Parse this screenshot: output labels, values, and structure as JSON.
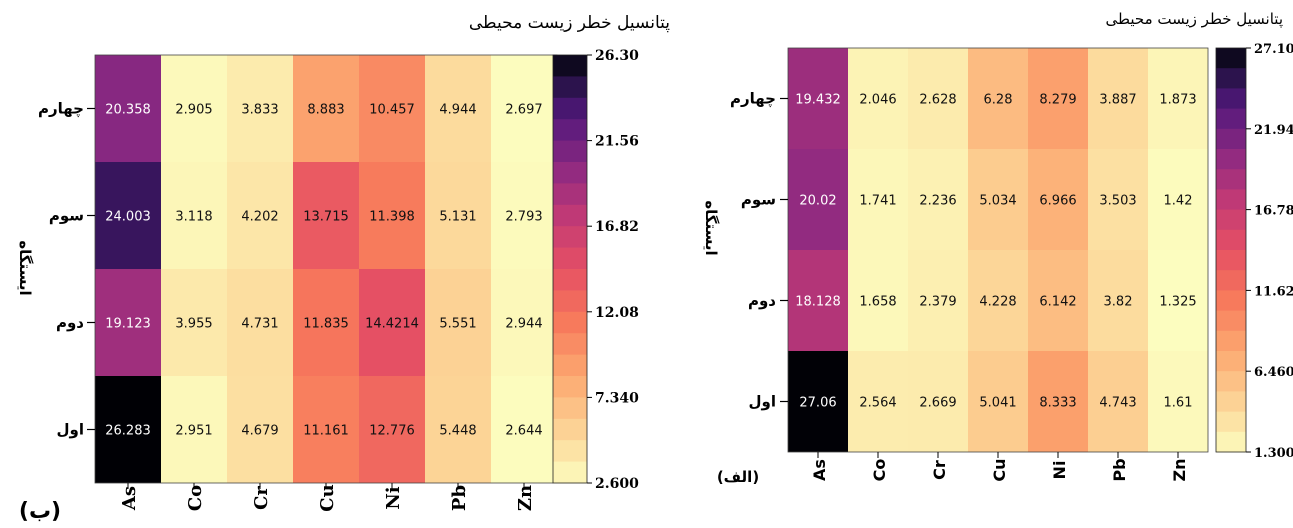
{
  "chart_data": [
    {
      "panel_label": "(ب)",
      "type": "heatmap",
      "title": "پتانسیل خطر زیست محیطی",
      "ylabel": "ایستگاه",
      "x_categories": [
        "As",
        "Co",
        "Cr",
        "Cu",
        "Ni",
        "Pb",
        "Zn"
      ],
      "y_categories": [
        "چهارم",
        "سوم",
        "دوم",
        "اول"
      ],
      "values": [
        [
          "20.358",
          "2.905",
          "3.833",
          "8.883",
          "10.457",
          "4.944",
          "2.697"
        ],
        [
          "24.003",
          "3.118",
          "4.202",
          "13.715",
          "11.398",
          "5.131",
          "2.793"
        ],
        [
          "19.123",
          "3.955",
          "4.731",
          "11.835",
          "14.4214",
          "5.551",
          "2.944"
        ],
        [
          "26.283",
          "2.951",
          "4.679",
          "11.161",
          "12.776",
          "5.448",
          "2.644"
        ]
      ],
      "colorbar": {
        "min": 2.6,
        "max": 26.3,
        "ticks": [
          "26.30",
          "21.56",
          "16.82",
          "12.08",
          "7.340",
          "2.600"
        ]
      }
    },
    {
      "panel_label": "(الف)",
      "type": "heatmap",
      "title": "پتانسیل خطر زیست محیطی",
      "ylabel": "ایستگاه",
      "x_categories": [
        "As",
        "Co",
        "Cr",
        "Cu",
        "Ni",
        "Pb",
        "Zn"
      ],
      "y_categories": [
        "چهارم",
        "سوم",
        "دوم",
        "اول"
      ],
      "values": [
        [
          "19.432",
          "2.046",
          "2.628",
          "6.28",
          "8.279",
          "3.887",
          "1.873"
        ],
        [
          "20.02",
          "1.741",
          "2.236",
          "5.034",
          "6.966",
          "3.503",
          "1.42"
        ],
        [
          "18.128",
          "1.658",
          "2.379",
          "4.228",
          "6.142",
          "3.82",
          "1.325"
        ],
        [
          "27.06",
          "2.564",
          "2.669",
          "5.041",
          "8.333",
          "4.743",
          "1.61"
        ]
      ],
      "colorbar": {
        "min": 1.3,
        "max": 27.1,
        "ticks": [
          "27.10",
          "21.94",
          "16.78",
          "11.62",
          "6.460",
          "1.300"
        ]
      }
    }
  ]
}
